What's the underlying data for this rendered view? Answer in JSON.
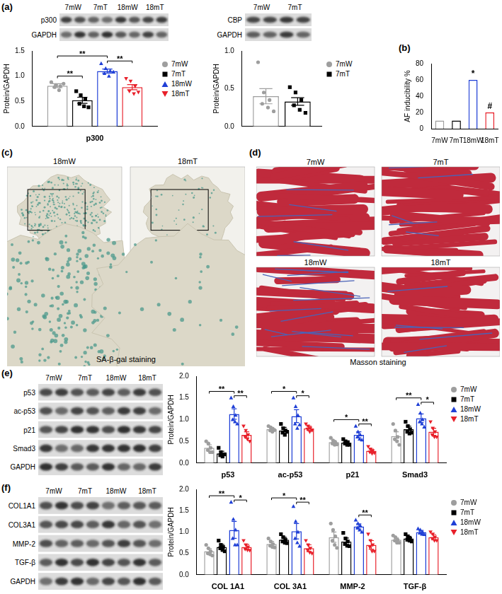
{
  "panel_labels": [
    "(a)",
    "(b)",
    "(c)",
    "(d)",
    "(e)",
    "(f)"
  ],
  "chart_data": [
    {
      "type": "bar",
      "categories": [
        "p300"
      ],
      "y_label": "Protein/GAPDH",
      "ylim": [
        0,
        1.5
      ],
      "yticks": [
        {
          "value": 0,
          "label": "0.0"
        },
        {
          "value": 0.5,
          "label": "0.5"
        },
        {
          "value": 1,
          "label": "1.0"
        },
        {
          "value": 1.5,
          "label": "1.5"
        }
      ],
      "grid": false,
      "legend": "right",
      "series": [
        {
          "name": "7mW",
          "color": "#9e9e9e",
          "marker": "circle",
          "values": [
            0.81
          ],
          "errors": [
            0.04
          ],
          "points": [
            [
              0.88,
              0.82,
              0.8,
              0.78,
              0.72,
              0.85
            ]
          ]
        },
        {
          "name": "7mT",
          "color": "#000000",
          "marker": "square",
          "values": [
            0.52
          ],
          "errors": [
            0.06
          ],
          "points": [
            [
              0.7,
              0.62,
              0.55,
              0.45,
              0.4,
              0.38
            ]
          ]
        },
        {
          "name": "18mW",
          "color": "#1f3fd6",
          "marker": "triangle",
          "values": [
            1.1
          ],
          "errors": [
            0.04
          ],
          "points": [
            [
              1.25,
              1.15,
              1.1,
              1.05,
              1.0,
              1.08
            ]
          ]
        },
        {
          "name": "18mT",
          "color": "#e8202a",
          "marker": "triangle-down",
          "values": [
            0.78
          ],
          "errors": [
            0.05
          ],
          "points": [
            [
              0.95,
              0.9,
              0.8,
              0.7,
              0.65,
              0.68
            ]
          ]
        }
      ],
      "significance": [
        {
          "category": "p300",
          "from": "7mW",
          "to": "7mT",
          "y": 1.0,
          "label": "**"
        },
        {
          "category": "p300",
          "from": "7mW",
          "to": "18mW",
          "y": 1.4,
          "label": "**"
        },
        {
          "category": "p300",
          "from": "18mW",
          "to": "18mT",
          "y": 1.3,
          "label": "**"
        }
      ]
    },
    {
      "type": "bar",
      "categories": [
        null
      ],
      "y_label": "Protein/GAPDH",
      "ylim": [
        0,
        1.0
      ],
      "yticks": [
        {
          "value": 0,
          "label": "0.0"
        },
        {
          "value": 0.5,
          "label": "0.5"
        },
        {
          "value": 1,
          "label": "1.0"
        }
      ],
      "grid": false,
      "legend": "right",
      "series": [
        {
          "name": "7mW",
          "color": "#9e9e9e",
          "marker": "circle",
          "values": [
            0.4
          ],
          "errors": [
            0.1
          ],
          "points": [
            [
              0.85,
              0.45,
              0.35,
              0.3,
              0.25,
              0.2
            ]
          ]
        },
        {
          "name": "7mT",
          "color": "#000000",
          "marker": "square",
          "values": [
            0.33
          ],
          "errors": [
            0.05
          ],
          "points": [
            [
              0.52,
              0.45,
              0.35,
              0.28,
              0.22,
              0.18
            ]
          ]
        }
      ],
      "significance": []
    },
    {
      "type": "bar",
      "categories": [
        "7mW",
        "7mT",
        "18mW",
        "18mT"
      ],
      "values": [
        10,
        10,
        60,
        20
      ],
      "colors": [
        "#9e9e9e",
        "#000000",
        "#1f3fd6",
        "#e8202a"
      ],
      "y_label": "AF inducibility %",
      "ylim": [
        0,
        80
      ],
      "yticks": [
        0,
        20,
        40,
        60,
        80
      ],
      "grid": false,
      "annotations": [
        {
          "category": "18mW",
          "y": 62,
          "label": "*"
        },
        {
          "category": "18mT",
          "y": 22,
          "label": "#"
        }
      ]
    },
    {
      "type": "bar",
      "categories": [
        "p53",
        "ac-p53",
        "p21",
        "Smad3"
      ],
      "y_label": "Protein/GAPDH",
      "ylim": [
        0,
        2.0
      ],
      "yticks": [
        {
          "value": 0,
          "label": "0.0"
        },
        {
          "value": 0.5,
          "label": "0.5"
        },
        {
          "value": 1,
          "label": "1.0"
        },
        {
          "value": 1.5,
          "label": "1.5"
        },
        {
          "value": 2,
          "label": "2.0"
        }
      ],
      "grid": false,
      "legend": "right",
      "series": [
        {
          "name": "7mW",
          "color": "#9e9e9e",
          "marker": "circle",
          "values": [
            0.35,
            0.78,
            0.48,
            0.62
          ],
          "errors": [
            0.07,
            0.04,
            0.04,
            0.1
          ],
          "points": [
            [
              0.5,
              0.45,
              0.35,
              0.3,
              0.25,
              0.25
            ],
            [
              0.85,
              0.82,
              0.78,
              0.75,
              0.72,
              0.76
            ],
            [
              0.58,
              0.52,
              0.48,
              0.45,
              0.42,
              0.43
            ],
            [
              0.9,
              0.75,
              0.6,
              0.55,
              0.5,
              0.42
            ]
          ]
        },
        {
          "name": "7mT",
          "color": "#000000",
          "marker": "square",
          "values": [
            0.22,
            0.75,
            0.47,
            0.78
          ],
          "errors": [
            0.05,
            0.07,
            0.04,
            0.07
          ],
          "points": [
            [
              0.35,
              0.25,
              0.2,
              0.18,
              0.15,
              0.2
            ],
            [
              0.9,
              0.8,
              0.75,
              0.7,
              0.65,
              0.72
            ],
            [
              0.55,
              0.5,
              0.48,
              0.45,
              0.42,
              0.42
            ],
            [
              0.95,
              0.85,
              0.78,
              0.72,
              0.68,
              0.7
            ]
          ]
        },
        {
          "name": "18mW",
          "color": "#1f3fd6",
          "marker": "triangle",
          "values": [
            1.13,
            1.08,
            0.65,
            1.03
          ],
          "errors": [
            0.12,
            0.15,
            0.07,
            0.1
          ],
          "points": [
            [
              1.5,
              1.3,
              1.1,
              1.0,
              0.95,
              0.9
            ],
            [
              1.5,
              1.3,
              1.1,
              0.9,
              0.8,
              0.88
            ],
            [
              0.85,
              0.72,
              0.65,
              0.6,
              0.55,
              0.53
            ],
            [
              1.35,
              1.15,
              1.0,
              0.95,
              0.9,
              0.83
            ]
          ]
        },
        {
          "name": "18mT",
          "color": "#e8202a",
          "marker": "triangle-down",
          "values": [
            0.65,
            0.8,
            0.28,
            0.72
          ],
          "errors": [
            0.07,
            0.05,
            0.04,
            0.08
          ],
          "points": [
            [
              0.85,
              0.75,
              0.65,
              0.6,
              0.55,
              0.5
            ],
            [
              0.9,
              0.85,
              0.8,
              0.78,
              0.72,
              0.75
            ],
            [
              0.38,
              0.32,
              0.28,
              0.25,
              0.22,
              0.23
            ],
            [
              0.95,
              0.8,
              0.72,
              0.65,
              0.6,
              0.6
            ]
          ]
        }
      ],
      "significance": [
        {
          "category": "p53",
          "from": "7mW",
          "to": "18mW",
          "y": 1.65,
          "label": "**"
        },
        {
          "category": "p53",
          "from": "18mW",
          "to": "18mT",
          "y": 1.55,
          "label": "**"
        },
        {
          "category": "ac-p53",
          "from": "7mW",
          "to": "18mW",
          "y": 1.65,
          "label": "*"
        },
        {
          "category": "ac-p53",
          "from": "18mW",
          "to": "18mT",
          "y": 1.55,
          "label": "*"
        },
        {
          "category": "p21",
          "from": "7mW",
          "to": "18mW",
          "y": 1.0,
          "label": "*"
        },
        {
          "category": "p21",
          "from": "18mW",
          "to": "18mT",
          "y": 0.9,
          "label": "**"
        },
        {
          "category": "Smad3",
          "from": "7mW",
          "to": "18mW",
          "y": 1.5,
          "label": "**"
        },
        {
          "category": "Smad3",
          "from": "18mW",
          "to": "18mT",
          "y": 1.4,
          "label": "*"
        }
      ]
    },
    {
      "type": "bar",
      "categories": [
        "COL 1A1",
        "COL 3A1",
        "MMP-2",
        "TGF-β"
      ],
      "y_label": "Protein/GAPDH",
      "ylim": [
        0,
        2.0
      ],
      "yticks": [
        {
          "value": 0,
          "label": "0.0"
        },
        {
          "value": 0.5,
          "label": "0.5"
        },
        {
          "value": 1,
          "label": "1.0"
        },
        {
          "value": 1.5,
          "label": "1.5"
        },
        {
          "value": 2,
          "label": "2.0"
        }
      ],
      "grid": false,
      "legend": "right",
      "series": [
        {
          "name": "7mW",
          "color": "#9e9e9e",
          "marker": "circle",
          "values": [
            0.55,
            0.72,
            0.88,
            0.82
          ],
          "errors": [
            0.06,
            0.06,
            0.12,
            0.05
          ],
          "points": [
            [
              0.7,
              0.62,
              0.55,
              0.5,
              0.48,
              0.45
            ],
            [
              0.85,
              0.78,
              0.72,
              0.68,
              0.65,
              0.64
            ],
            [
              1.2,
              1.05,
              0.9,
              0.8,
              0.7,
              0.63
            ],
            [
              0.92,
              0.88,
              0.82,
              0.8,
              0.75,
              0.75
            ]
          ]
        },
        {
          "name": "7mT",
          "color": "#000000",
          "marker": "square",
          "values": [
            0.65,
            0.82,
            0.78,
            0.85
          ],
          "errors": [
            0.06,
            0.06,
            0.08,
            0.05
          ],
          "points": [
            [
              0.8,
              0.7,
              0.65,
              0.62,
              0.58,
              0.55
            ],
            [
              0.95,
              0.88,
              0.82,
              0.78,
              0.75,
              0.74
            ],
            [
              0.98,
              0.85,
              0.78,
              0.72,
              0.68,
              0.67
            ],
            [
              0.95,
              0.9,
              0.85,
              0.82,
              0.8,
              0.78
            ]
          ]
        },
        {
          "name": "18mW",
          "color": "#1f3fd6",
          "marker": "triangle",
          "values": [
            1.05,
            1.02,
            1.13,
            1.0
          ],
          "errors": [
            0.2,
            0.18,
            0.06,
            0.04
          ],
          "points": [
            [
              1.7,
              1.3,
              1.05,
              0.85,
              0.7,
              0.7
            ],
            [
              1.6,
              1.25,
              1.0,
              0.85,
              0.75,
              0.67
            ],
            [
              1.28,
              1.2,
              1.15,
              1.1,
              1.05,
              1.0
            ],
            [
              1.08,
              1.05,
              1.0,
              0.98,
              0.95,
              0.94
            ]
          ]
        },
        {
          "name": "18mT",
          "color": "#e8202a",
          "marker": "triangle-down",
          "values": [
            0.65,
            0.62,
            0.7,
            0.88
          ],
          "errors": [
            0.06,
            0.08,
            0.1,
            0.06
          ],
          "points": [
            [
              0.8,
              0.7,
              0.65,
              0.6,
              0.58,
              0.57
            ],
            [
              0.8,
              0.7,
              0.62,
              0.58,
              0.52,
              0.5
            ],
            [
              0.95,
              0.8,
              0.7,
              0.65,
              0.55,
              0.55
            ],
            [
              1.0,
              0.95,
              0.88,
              0.85,
              0.8,
              0.8
            ]
          ]
        }
      ],
      "significance": [
        {
          "category": "COL 1A1",
          "from": "7mW",
          "to": "18mW",
          "y": 1.85,
          "label": "**"
        },
        {
          "category": "COL 1A1",
          "from": "18mW",
          "to": "18mT",
          "y": 1.75,
          "label": "*"
        },
        {
          "category": "COL 3A1",
          "from": "7mW",
          "to": "18mW",
          "y": 1.8,
          "label": "*"
        },
        {
          "category": "COL 3A1",
          "from": "18mW",
          "to": "18mT",
          "y": 1.7,
          "label": "**"
        },
        {
          "category": "MMP-2",
          "from": "18mW",
          "to": "18mT",
          "y": 1.4,
          "label": "**"
        }
      ]
    }
  ],
  "blots": [
    {
      "lanes": [
        "7mW",
        "7mT",
        "18mW",
        "18mT"
      ],
      "rows": [
        "p300",
        "GAPDH"
      ]
    },
    {
      "lanes": [
        "7mW",
        "7mT"
      ],
      "rows": [
        "CBP",
        "GAPDH"
      ]
    },
    {
      "lanes": [
        "7mW",
        "7mT",
        "18mW",
        "18mT"
      ],
      "rows": [
        "p53",
        "ac-p53",
        "p21",
        "Smad3",
        "GAPDH"
      ]
    },
    {
      "lanes": [
        "7mW",
        "7mT",
        "18mW",
        "18mT"
      ],
      "rows": [
        "COL1A1",
        "COL3A1",
        "MMP-2",
        "TGF-β",
        "GAPDH"
      ]
    }
  ],
  "images": [
    {
      "caption": "SA-β-gal staining",
      "panels": [
        "18mW",
        "18mT"
      ]
    },
    {
      "caption": "Masson staining",
      "panels": [
        "7mW",
        "7mT",
        "18mW",
        "18mT"
      ]
    }
  ]
}
